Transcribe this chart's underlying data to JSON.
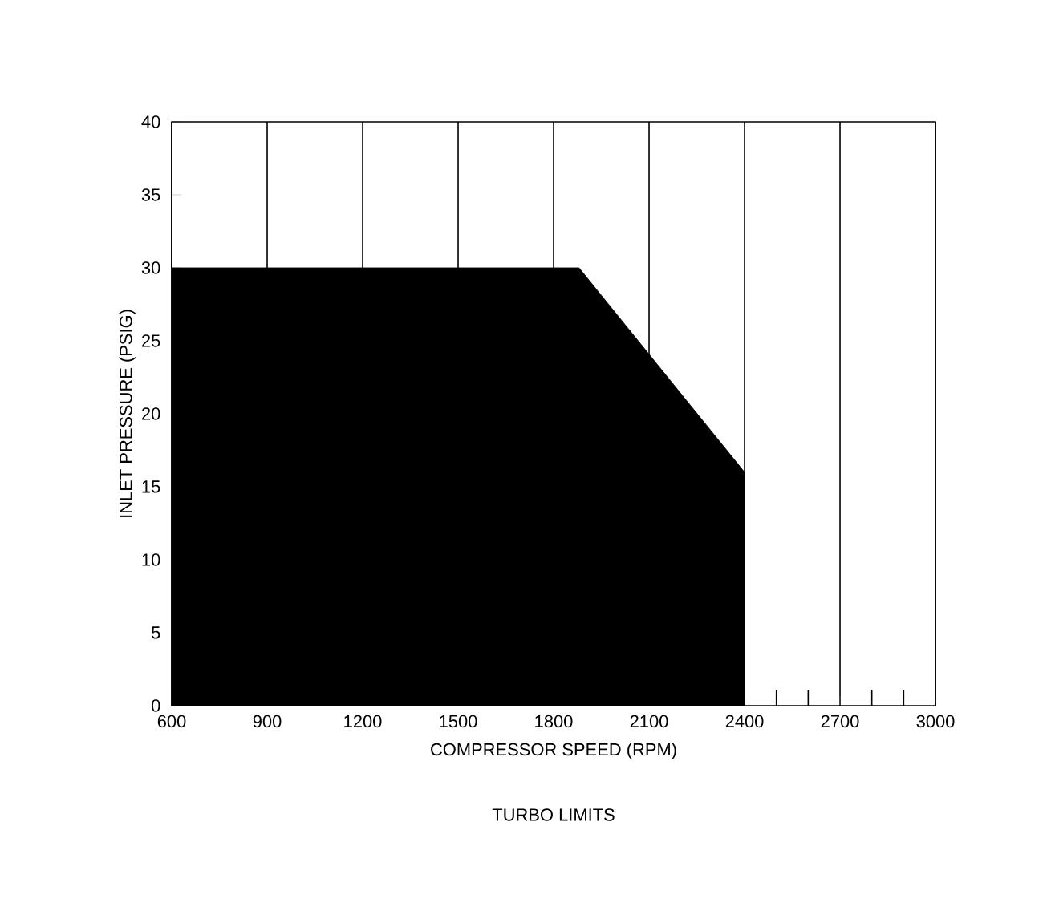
{
  "chart_data": {
    "type": "area",
    "xlabel": "COMPRESSOR SPEED (RPM)",
    "ylabel": "INLET PRESSURE (PSIG)",
    "annotations": [
      "TURBO LIMITS"
    ],
    "x": [
      600,
      1880,
      2400
    ],
    "values": [
      30,
      30,
      16
    ],
    "color": "#000000",
    "xlim": [
      600,
      3000
    ],
    "ylim": [
      0,
      40
    ],
    "xticks": [
      600,
      900,
      1200,
      1500,
      1800,
      2100,
      2400,
      {
        "value": 2500,
        "label": null
      },
      {
        "value": 2600,
        "label": null
      },
      2700,
      {
        "value": 2800,
        "label": null
      },
      {
        "value": 2900,
        "label": null
      },
      3000
    ],
    "yticks": [
      0,
      5,
      10,
      15,
      20,
      25,
      30,
      35,
      40
    ],
    "grid": "x",
    "marker": "none"
  }
}
